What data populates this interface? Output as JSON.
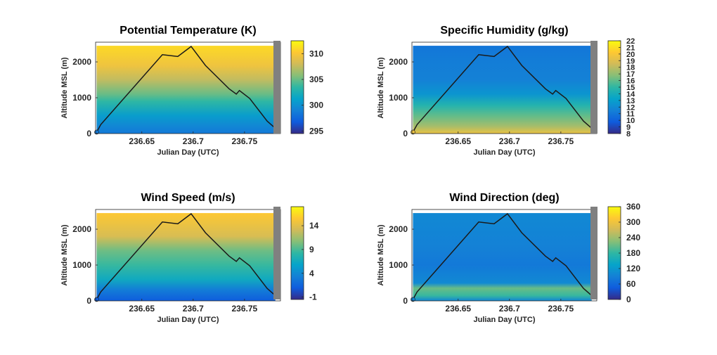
{
  "figure": {
    "colormap": [
      "#352A87",
      "#0F5CDD",
      "#1481D6",
      "#06A4CA",
      "#2EB7A4",
      "#87BF77",
      "#D1BB59",
      "#FEC832",
      "#F9FB0E"
    ]
  },
  "chart_data": [
    {
      "type": "heatmap",
      "title": "Potential Temperature (K)",
      "xlabel": "Julian Day (UTC)",
      "ylabel": "Altitude MSL (m)",
      "xticks": [
        "236.65",
        "236.7",
        "236.75"
      ],
      "yticks": [
        "0",
        "1000",
        "2000"
      ],
      "colorbar_ticks": [
        "295",
        "300",
        "305",
        "310"
      ],
      "clim": [
        294.5,
        312.5
      ],
      "xlim": [
        236.605,
        236.785
      ],
      "ylim": [
        0,
        2550
      ],
      "field_profile": [
        {
          "altitude": 0,
          "value": 298.5
        },
        {
          "altitude": 200,
          "value": 299.3
        },
        {
          "altitude": 500,
          "value": 300.8
        },
        {
          "altitude": 900,
          "value": 303.5
        },
        {
          "altitude": 1100,
          "value": 305
        },
        {
          "altitude": 1500,
          "value": 307.5
        },
        {
          "altitude": 1900,
          "value": 309.5
        },
        {
          "altitude": 2450,
          "value": 311
        }
      ],
      "flight_track": [
        [
          236.605,
          0
        ],
        [
          236.606,
          40
        ],
        [
          236.61,
          250
        ],
        [
          236.67,
          2200
        ],
        [
          236.685,
          2150
        ],
        [
          236.698,
          2430
        ],
        [
          236.712,
          1900
        ],
        [
          236.735,
          1250
        ],
        [
          236.742,
          1100
        ],
        [
          236.745,
          1200
        ],
        [
          236.755,
          980
        ],
        [
          236.772,
          350
        ],
        [
          236.78,
          150
        ]
      ]
    },
    {
      "type": "heatmap",
      "title": "Specific Humidity (g/kg)",
      "xlabel": "Julian Day (UTC)",
      "ylabel": "Altitude MSL (m)",
      "xticks": [
        "236.65",
        "236.7",
        "236.75"
      ],
      "yticks": [
        "0",
        "1000",
        "2000"
      ],
      "colorbar_ticks": [
        "8",
        "9",
        "10",
        "11",
        "12",
        "13",
        "14",
        "15",
        "16",
        "17",
        "18",
        "19",
        "20",
        "21",
        "22"
      ],
      "clim": [
        8,
        22
      ],
      "xlim": [
        236.605,
        236.785
      ],
      "ylim": [
        0,
        2550
      ],
      "field_profile": [
        {
          "altitude": 0,
          "value": 19.5
        },
        {
          "altitude": 200,
          "value": 17.5
        },
        {
          "altitude": 500,
          "value": 16
        },
        {
          "altitude": 800,
          "value": 14.5
        },
        {
          "altitude": 1100,
          "value": 12.5
        },
        {
          "altitude": 1500,
          "value": 11.5
        },
        {
          "altitude": 2000,
          "value": 11.3
        },
        {
          "altitude": 2450,
          "value": 11
        }
      ],
      "flight_track": [
        [
          236.605,
          0
        ],
        [
          236.606,
          40
        ],
        [
          236.61,
          250
        ],
        [
          236.67,
          2200
        ],
        [
          236.685,
          2150
        ],
        [
          236.698,
          2430
        ],
        [
          236.712,
          1900
        ],
        [
          236.735,
          1250
        ],
        [
          236.742,
          1100
        ],
        [
          236.745,
          1200
        ],
        [
          236.755,
          980
        ],
        [
          236.772,
          350
        ],
        [
          236.78,
          150
        ]
      ]
    },
    {
      "type": "heatmap",
      "title": "Wind Speed (m/s)",
      "xlabel": "Julian Day (UTC)",
      "ylabel": "Altitude MSL (m)",
      "xticks": [
        "236.65",
        "236.7",
        "236.75"
      ],
      "yticks": [
        "0",
        "1000",
        "2000"
      ],
      "colorbar_ticks": [
        "-1",
        "4",
        "9",
        "14"
      ],
      "clim": [
        -1.5,
        18
      ],
      "xlim": [
        236.605,
        236.785
      ],
      "ylim": [
        0,
        2550
      ],
      "field_profile": [
        {
          "altitude": 0,
          "value": 1
        },
        {
          "altitude": 300,
          "value": 3
        },
        {
          "altitude": 600,
          "value": 6.5
        },
        {
          "altitude": 1000,
          "value": 8.5
        },
        {
          "altitude": 1400,
          "value": 10
        },
        {
          "altitude": 1800,
          "value": 13.5
        },
        {
          "altitude": 2450,
          "value": 15.5
        }
      ],
      "flight_track": [
        [
          236.605,
          0
        ],
        [
          236.606,
          40
        ],
        [
          236.61,
          250
        ],
        [
          236.67,
          2200
        ],
        [
          236.685,
          2150
        ],
        [
          236.698,
          2430
        ],
        [
          236.712,
          1900
        ],
        [
          236.735,
          1250
        ],
        [
          236.742,
          1100
        ],
        [
          236.745,
          1200
        ],
        [
          236.755,
          980
        ],
        [
          236.772,
          350
        ],
        [
          236.78,
          150
        ]
      ]
    },
    {
      "type": "heatmap",
      "title": "Wind Direction (deg)",
      "xlabel": "Julian Day (UTC)",
      "ylabel": "Altitude MSL (m)",
      "xticks": [
        "236.65",
        "236.7",
        "236.75"
      ],
      "yticks": [
        "0",
        "1000",
        "2000"
      ],
      "colorbar_ticks": [
        "0",
        "60",
        "120",
        "180",
        "240",
        "300",
        "360"
      ],
      "clim": [
        0,
        360
      ],
      "xlim": [
        236.605,
        236.785
      ],
      "ylim": [
        0,
        2550
      ],
      "field_profile": [
        {
          "altitude": 0,
          "value": 95
        },
        {
          "altitude": 150,
          "value": 185
        },
        {
          "altitude": 350,
          "value": 210
        },
        {
          "altitude": 500,
          "value": 100
        },
        {
          "altitude": 1000,
          "value": 80
        },
        {
          "altitude": 1500,
          "value": 90
        },
        {
          "altitude": 2000,
          "value": 95
        },
        {
          "altitude": 2450,
          "value": 100
        }
      ],
      "flight_track": [
        [
          236.605,
          0
        ],
        [
          236.606,
          40
        ],
        [
          236.61,
          250
        ],
        [
          236.67,
          2200
        ],
        [
          236.685,
          2150
        ],
        [
          236.698,
          2430
        ],
        [
          236.712,
          1900
        ],
        [
          236.735,
          1250
        ],
        [
          236.742,
          1100
        ],
        [
          236.745,
          1200
        ],
        [
          236.755,
          980
        ],
        [
          236.772,
          350
        ],
        [
          236.78,
          150
        ]
      ]
    }
  ]
}
